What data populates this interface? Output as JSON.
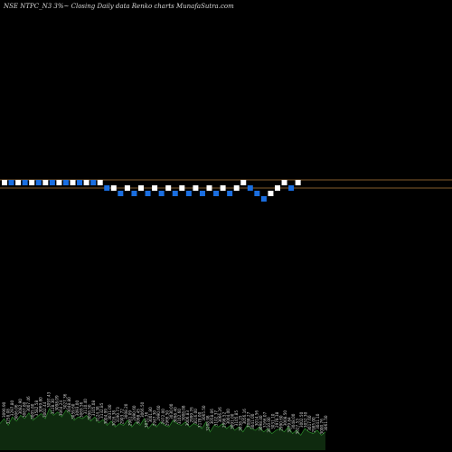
{
  "chart_data": {
    "type": "renko",
    "title": "NSE NTPC_N3 3%~  Closing Daily data  Renko  charts MunafaSutra.com",
    "colors": {
      "background": "#000000",
      "up_brick": "#ffffff",
      "down_brick": "#1a6ee0",
      "guide_line": "#b07a3a",
      "volume_fill": "#0f2a0f",
      "volume_line": "#2a8a2a"
    },
    "guide_lines": [
      0,
      -1.5
    ],
    "bricks": [
      {
        "level": 0,
        "dir": "up"
      },
      {
        "level": 0,
        "dir": "down"
      },
      {
        "level": 0,
        "dir": "up"
      },
      {
        "level": 0,
        "dir": "down"
      },
      {
        "level": 0,
        "dir": "up"
      },
      {
        "level": 0,
        "dir": "down"
      },
      {
        "level": 0,
        "dir": "up"
      },
      {
        "level": 0,
        "dir": "down"
      },
      {
        "level": 0,
        "dir": "up"
      },
      {
        "level": 0,
        "dir": "down"
      },
      {
        "level": 0,
        "dir": "up"
      },
      {
        "level": 0,
        "dir": "down"
      },
      {
        "level": 0,
        "dir": "up"
      },
      {
        "level": 0,
        "dir": "down"
      },
      {
        "level": 0,
        "dir": "up"
      },
      {
        "level": -1,
        "dir": "down"
      },
      {
        "level": -1,
        "dir": "up"
      },
      {
        "level": -2,
        "dir": "down"
      },
      {
        "level": -1,
        "dir": "up"
      },
      {
        "level": -2,
        "dir": "down"
      },
      {
        "level": -1,
        "dir": "up"
      },
      {
        "level": -2,
        "dir": "down"
      },
      {
        "level": -1,
        "dir": "up"
      },
      {
        "level": -2,
        "dir": "down"
      },
      {
        "level": -1,
        "dir": "up"
      },
      {
        "level": -2,
        "dir": "down"
      },
      {
        "level": -1,
        "dir": "up"
      },
      {
        "level": -2,
        "dir": "down"
      },
      {
        "level": -1,
        "dir": "up"
      },
      {
        "level": -2,
        "dir": "down"
      },
      {
        "level": -1,
        "dir": "up"
      },
      {
        "level": -2,
        "dir": "down"
      },
      {
        "level": -1,
        "dir": "up"
      },
      {
        "level": -2,
        "dir": "down"
      },
      {
        "level": -1,
        "dir": "up"
      },
      {
        "level": 0,
        "dir": "up"
      },
      {
        "level": -1,
        "dir": "down"
      },
      {
        "level": -2,
        "dir": "down"
      },
      {
        "level": -3,
        "dir": "down"
      },
      {
        "level": -2,
        "dir": "up"
      },
      {
        "level": -1,
        "dir": "up"
      },
      {
        "level": 0,
        "dir": "up"
      },
      {
        "level": -1,
        "dir": "down"
      },
      {
        "level": 0,
        "dir": "up"
      }
    ],
    "volume": [
      32,
      38,
      30,
      40,
      35,
      42,
      38,
      45,
      36,
      40,
      44,
      38,
      50,
      42,
      46,
      40,
      48,
      44,
      36,
      40,
      38,
      42,
      35,
      40,
      33,
      37,
      30,
      35,
      28,
      32,
      30,
      36,
      28,
      34,
      30,
      38,
      26,
      32,
      28,
      34,
      30,
      28,
      36,
      32,
      30,
      34,
      28,
      32,
      30,
      26,
      34,
      22,
      30,
      28,
      32,
      26,
      30,
      24,
      28,
      22,
      30,
      26,
      24,
      28,
      22,
      26,
      20,
      24,
      26,
      22,
      28,
      20,
      24,
      18,
      26,
      22,
      20,
      24,
      18,
      22
    ],
    "volume_labels": [
      "3090.90",
      "3258.08",
      "3297.80",
      "3006.06",
      "3082.90",
      "3087.80",
      "3007.46",
      "3005.80",
      "3582.58",
      "3069.80",
      "3002.44",
      "3097.43",
      "3128.30",
      "3098.09",
      "3064.24",
      "3027.36",
      "3048.80",
      "3059.60",
      "3093.00",
      "3069.56",
      "3110.40",
      "3098.50",
      "3105.08",
      "3124.38",
      "3132.85",
      "3004.99",
      "3031.00",
      "3016.38",
      "3190.73",
      "2903.72",
      "3008.20",
      "2981.09",
      "2890.60",
      "3098.45",
      "3066.50",
      "3031.36",
      "3001.80",
      "2947.30",
      "2990.60",
      "2972.00",
      "2966.50",
      "3030.00",
      "3098.40",
      "3102.60",
      "3008.08",
      "3006.83",
      "2999.76",
      "3016.00",
      "3178.00",
      "3065.50",
      "3108.98",
      "3058.06",
      "3102.37",
      "3066.26",
      "2998.52",
      "3004.00",
      "3091.00",
      "3105.85",
      "3038.25",
      "3056.16",
      "3088.27",
      "3041.00",
      "3014.56",
      "3098.40",
      "3166.07",
      "3010.00",
      "3031.10",
      "2978.38",
      "2990.60",
      "3008.50",
      "3079.84",
      "3048.00",
      "3027.53",
      "3002.50",
      "3052.30",
      "3017.60",
      "2985.00",
      "3041.10",
      "3000.76",
      "3061.50"
    ]
  }
}
